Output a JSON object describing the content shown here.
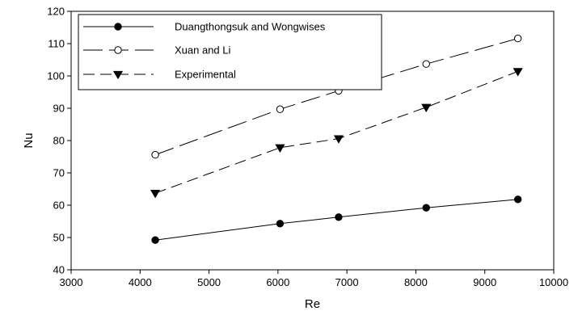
{
  "chart_data": {
    "type": "line",
    "title": "",
    "xlabel": "Re",
    "ylabel": "Nu",
    "xlim": [
      3000,
      10000
    ],
    "ylim": [
      40,
      120
    ],
    "xticks": [
      3000,
      4000,
      5000,
      6000,
      7000,
      8000,
      9000,
      10000
    ],
    "yticks": [
      40,
      50,
      60,
      70,
      80,
      90,
      100,
      110,
      120
    ],
    "grid": false,
    "legend_position": "top-left",
    "series": [
      {
        "name": "Duangthongsuk and Wongwises",
        "marker": "filled-circle",
        "line_style": "solid",
        "x": [
          4220,
          6030,
          6880,
          8150,
          9480
        ],
        "y": [
          49.2,
          54.3,
          56.3,
          59.2,
          61.8
        ]
      },
      {
        "name": "Xuan and Li",
        "marker": "open-circle",
        "line_style": "long-dash",
        "x": [
          4220,
          6030,
          6880,
          8150,
          9480
        ],
        "y": [
          75.6,
          89.7,
          95.4,
          103.7,
          111.6
        ]
      },
      {
        "name": "Experimental",
        "marker": "filled-triangle-down",
        "line_style": "dash",
        "x": [
          4220,
          6030,
          6880,
          8150,
          9480
        ],
        "y": [
          63.7,
          77.8,
          80.6,
          90.3,
          101.4
        ]
      }
    ]
  }
}
